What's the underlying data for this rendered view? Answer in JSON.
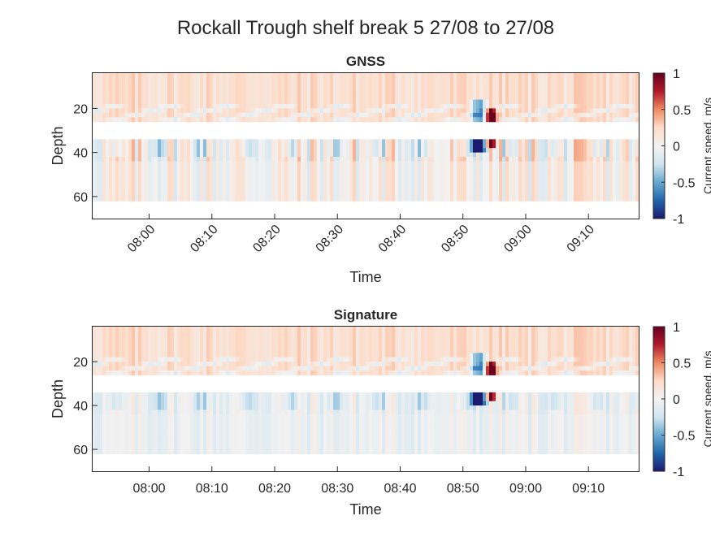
{
  "figure": {
    "title": "Rockall Trough shelf break 5 27/08 to 27/08"
  },
  "colorbar": {
    "label": "Current speed, m/s",
    "range": [
      -1,
      1
    ],
    "ticks": [
      -1,
      -0.5,
      0,
      0.5,
      1
    ],
    "tick_labels": [
      "-1",
      "-0.5",
      "0",
      "0.5",
      "1"
    ],
    "colormap_stops": [
      "#1a1a6e",
      "#2166ac",
      "#67a9cf",
      "#d1e5f0",
      "#f2f2f2",
      "#fddbc7",
      "#ef8a62",
      "#b2182b",
      "#67001f"
    ]
  },
  "chart_data": [
    {
      "type": "heatmap",
      "title": "GNSS",
      "xlabel": "Time",
      "ylabel": "Depth",
      "x_range_minutes": [
        -9,
        78
      ],
      "x_tick_minutes": [
        0,
        10,
        20,
        30,
        40,
        50,
        60,
        70
      ],
      "x_tick_labels": [
        "08:00",
        "08:10",
        "08:20",
        "08:30",
        "08:40",
        "08:50",
        "09:00",
        "09:10"
      ],
      "x_tick_rotation_deg": -45,
      "y_range": [
        4,
        70
      ],
      "y_reversed": true,
      "y_ticks": [
        20,
        40,
        60
      ],
      "y_tick_labels": [
        "20",
        "40",
        "60"
      ],
      "data_depth_range": [
        4,
        62
      ],
      "gap_depth_range": [
        26,
        33
      ],
      "max_negative": {
        "minute": 52.5,
        "depth": 34,
        "value": -1.0
      },
      "max_positive": {
        "minute": 54.5,
        "depth": 28,
        "value": 0.95
      },
      "surface_bias": 0.2,
      "deep_bias": 0.05,
      "variability": 0.3
    },
    {
      "type": "heatmap",
      "title": "Signature",
      "xlabel": "Time",
      "ylabel": "Depth",
      "x_range_minutes": [
        -9,
        78
      ],
      "x_tick_minutes": [
        0,
        10,
        20,
        30,
        40,
        50,
        60,
        70
      ],
      "x_tick_labels": [
        "08:00",
        "08:10",
        "08:20",
        "08:30",
        "08:40",
        "08:50",
        "09:00",
        "09:10"
      ],
      "x_tick_rotation_deg": 0,
      "y_range": [
        4,
        70
      ],
      "y_reversed": true,
      "y_ticks": [
        20,
        40,
        60
      ],
      "y_tick_labels": [
        "20",
        "40",
        "60"
      ],
      "data_depth_range": [
        4,
        62
      ],
      "gap_depth_range": [
        26,
        33
      ],
      "max_negative": {
        "minute": 52.5,
        "depth": 34,
        "value": -1.0
      },
      "max_positive": {
        "minute": 54.5,
        "depth": 28,
        "value": 0.95
      },
      "surface_bias": 0.2,
      "deep_bias": -0.05,
      "variability": 0.15
    }
  ]
}
